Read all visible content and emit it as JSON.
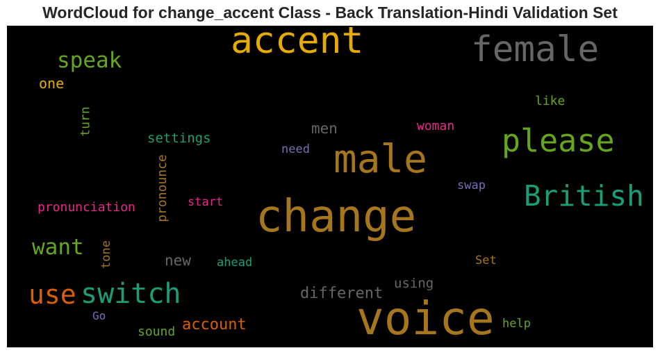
{
  "title": "WordCloud for change_accent Class - Back Translation-Hindi Validation Set",
  "background_color": "#000000",
  "words": [
    {
      "text": "accent",
      "color": "#e6ab02",
      "orientation": "horizontal"
    },
    {
      "text": "female",
      "color": "#666666",
      "orientation": "horizontal"
    },
    {
      "text": "speak",
      "color": "#66a61e",
      "orientation": "horizontal"
    },
    {
      "text": "one",
      "color": "#e6ab02",
      "orientation": "horizontal"
    },
    {
      "text": "turn",
      "color": "#66a61e",
      "orientation": "vertical"
    },
    {
      "text": "like",
      "color": "#66a61e",
      "orientation": "horizontal"
    },
    {
      "text": "settings",
      "color": "#1b9e77",
      "orientation": "horizontal"
    },
    {
      "text": "men",
      "color": "#666666",
      "orientation": "horizontal"
    },
    {
      "text": "woman",
      "color": "#e7298a",
      "orientation": "horizontal"
    },
    {
      "text": "please",
      "color": "#66a61e",
      "orientation": "horizontal"
    },
    {
      "text": "need",
      "color": "#7570b3",
      "orientation": "horizontal"
    },
    {
      "text": "male",
      "color": "#a6761d",
      "orientation": "horizontal"
    },
    {
      "text": "pronounce",
      "color": "#a6761d",
      "orientation": "vertical"
    },
    {
      "text": "swap",
      "color": "#7570b3",
      "orientation": "horizontal"
    },
    {
      "text": "British",
      "color": "#1b9e77",
      "orientation": "horizontal"
    },
    {
      "text": "pronunciation",
      "color": "#e7298a",
      "orientation": "horizontal"
    },
    {
      "text": "start",
      "color": "#e7298a",
      "orientation": "horizontal"
    },
    {
      "text": "change",
      "color": "#a6761d",
      "orientation": "horizontal"
    },
    {
      "text": "want",
      "color": "#66a61e",
      "orientation": "horizontal"
    },
    {
      "text": "tone",
      "color": "#a6761d",
      "orientation": "vertical"
    },
    {
      "text": "new",
      "color": "#666666",
      "orientation": "horizontal"
    },
    {
      "text": "ahead",
      "color": "#1b9e77",
      "orientation": "horizontal"
    },
    {
      "text": "Set",
      "color": "#a6761d",
      "orientation": "horizontal"
    },
    {
      "text": "using",
      "color": "#666666",
      "orientation": "horizontal"
    },
    {
      "text": "use",
      "color": "#d95f02",
      "orientation": "horizontal"
    },
    {
      "text": "switch",
      "color": "#1b9e77",
      "orientation": "horizontal"
    },
    {
      "text": "different",
      "color": "#666666",
      "orientation": "horizontal"
    },
    {
      "text": "voice",
      "color": "#a6761d",
      "orientation": "horizontal"
    },
    {
      "text": "Go",
      "color": "#7570b3",
      "orientation": "horizontal"
    },
    {
      "text": "account",
      "color": "#d95f02",
      "orientation": "horizontal"
    },
    {
      "text": "help",
      "color": "#66a61e",
      "orientation": "horizontal"
    },
    {
      "text": "sound",
      "color": "#66a61e",
      "orientation": "horizontal"
    }
  ]
}
